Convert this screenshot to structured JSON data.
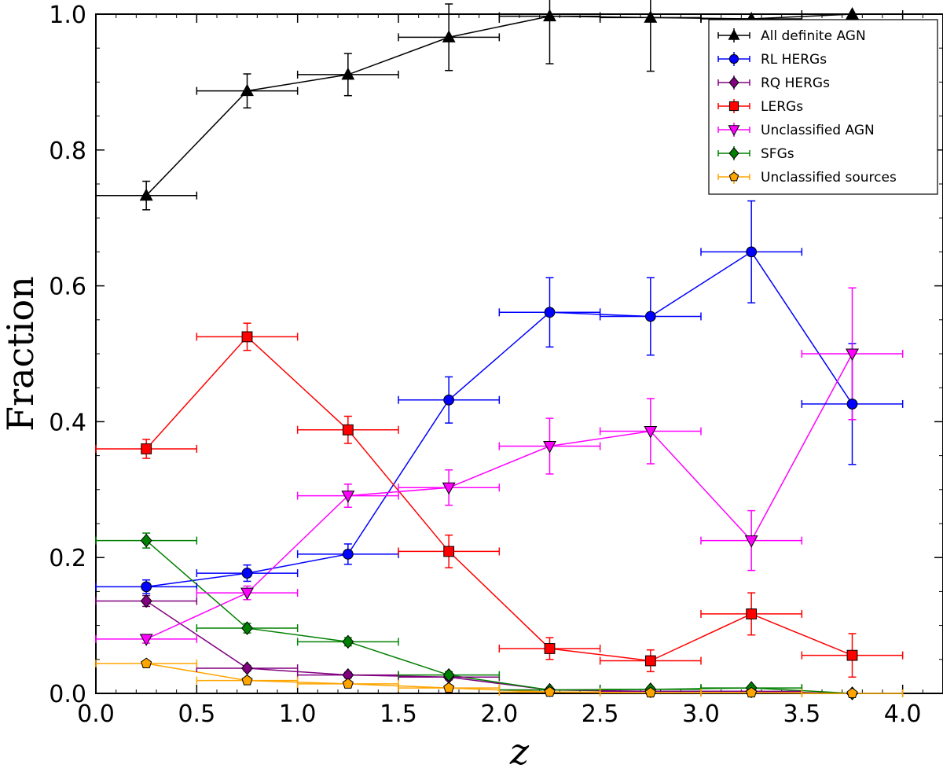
{
  "chart_data": {
    "type": "line",
    "title": "",
    "xlabel": "z",
    "ylabel": "Fraction",
    "xlim": [
      0.0,
      4.2
    ],
    "ylim": [
      0.0,
      1.0
    ],
    "xticks": [
      "0.0",
      "0.5",
      "1.0",
      "1.5",
      "2.0",
      "2.5",
      "3.0",
      "3.5",
      "4.0"
    ],
    "yticks": [
      "0.0",
      "0.2",
      "0.4",
      "0.6",
      "0.8",
      "1.0"
    ],
    "grid": false,
    "legend_position": "top-right",
    "series": [
      {
        "name": "All definite AGN",
        "color": "#000000",
        "marker": "triangle-up",
        "x": [
          0.25,
          0.75,
          1.25,
          1.75,
          2.25,
          2.75,
          3.25,
          3.75
        ],
        "y": [
          0.733,
          0.887,
          0.911,
          0.966,
          0.997,
          0.995,
          0.993,
          1.0
        ],
        "xerr": [
          0.25,
          0.25,
          0.25,
          0.25,
          0.25,
          0.25,
          0.25,
          0.25
        ],
        "yerr": [
          0.021,
          0.025,
          0.031,
          0.049,
          0.07,
          0.079,
          0.0,
          0.0
        ]
      },
      {
        "name": "RL HERGs",
        "color": "#0000ff",
        "marker": "circle",
        "x": [
          0.25,
          0.75,
          1.25,
          1.75,
          2.25,
          2.75,
          3.25,
          3.75
        ],
        "y": [
          0.157,
          0.177,
          0.205,
          0.432,
          0.561,
          0.555,
          0.65,
          0.426
        ],
        "xerr": [
          0.25,
          0.25,
          0.25,
          0.25,
          0.25,
          0.25,
          0.25,
          0.25
        ],
        "yerr": [
          0.01,
          0.012,
          0.015,
          0.034,
          0.051,
          0.057,
          0.075,
          0.089
        ]
      },
      {
        "name": "RQ HERGs",
        "color": "#800080",
        "marker": "diamond",
        "x": [
          0.25,
          0.75,
          1.25,
          1.75,
          2.25,
          2.75,
          3.25,
          3.75
        ],
        "y": [
          0.136,
          0.037,
          0.027,
          0.024,
          0.005,
          0.003,
          0.003,
          0.0
        ],
        "xerr": [
          0.25,
          0.25,
          0.25,
          0.25,
          0.25,
          0.25,
          0.25,
          0.25
        ],
        "yerr": [
          0.008,
          0.004,
          0.004,
          0.004,
          0.002,
          0.002,
          0.002,
          0.0
        ]
      },
      {
        "name": "LERGs",
        "color": "#ff0000",
        "marker": "square",
        "x": [
          0.25,
          0.75,
          1.25,
          1.75,
          2.25,
          2.75,
          3.25,
          3.75
        ],
        "y": [
          0.36,
          0.525,
          0.388,
          0.209,
          0.066,
          0.048,
          0.117,
          0.056
        ],
        "xerr": [
          0.25,
          0.25,
          0.25,
          0.25,
          0.25,
          0.25,
          0.25,
          0.25
        ],
        "yerr": [
          0.014,
          0.02,
          0.02,
          0.024,
          0.016,
          0.016,
          0.031,
          0.032
        ]
      },
      {
        "name": "Unclassified AGN",
        "color": "#ff00ff",
        "marker": "triangle-down",
        "x": [
          0.25,
          0.75,
          1.25,
          1.75,
          2.25,
          2.75,
          3.25,
          3.75
        ],
        "y": [
          0.08,
          0.148,
          0.291,
          0.303,
          0.364,
          0.386,
          0.225,
          0.5
        ],
        "xerr": [
          0.25,
          0.25,
          0.25,
          0.25,
          0.25,
          0.25,
          0.25,
          0.25
        ],
        "yerr": [
          0.006,
          0.01,
          0.017,
          0.026,
          0.041,
          0.048,
          0.044,
          0.097
        ]
      },
      {
        "name": "SFGs",
        "color": "#008000",
        "marker": "diamond",
        "x": [
          0.25,
          0.75,
          1.25,
          1.75,
          2.25,
          2.75,
          3.25,
          3.75
        ],
        "y": [
          0.225,
          0.096,
          0.076,
          0.027,
          0.005,
          0.006,
          0.008,
          0.0
        ],
        "xerr": [
          0.25,
          0.25,
          0.25,
          0.25,
          0.25,
          0.25,
          0.25,
          0.25
        ],
        "yerr": [
          0.011,
          0.007,
          0.006,
          0.005,
          0.002,
          0.003,
          0.003,
          0.0
        ]
      },
      {
        "name": "Unclassified sources",
        "color": "#ffa500",
        "marker": "pentagon",
        "x": [
          0.25,
          0.75,
          1.25,
          1.75,
          2.25,
          2.75,
          3.25,
          3.75
        ],
        "y": [
          0.044,
          0.019,
          0.014,
          0.008,
          0.002,
          0.001,
          0.001,
          0.0
        ],
        "xerr": [
          0.25,
          0.25,
          0.25,
          0.25,
          0.25,
          0.25,
          0.25,
          0.25
        ],
        "yerr": [
          0.004,
          0.003,
          0.002,
          0.002,
          0.001,
          0.001,
          0.001,
          0.0
        ]
      }
    ]
  }
}
